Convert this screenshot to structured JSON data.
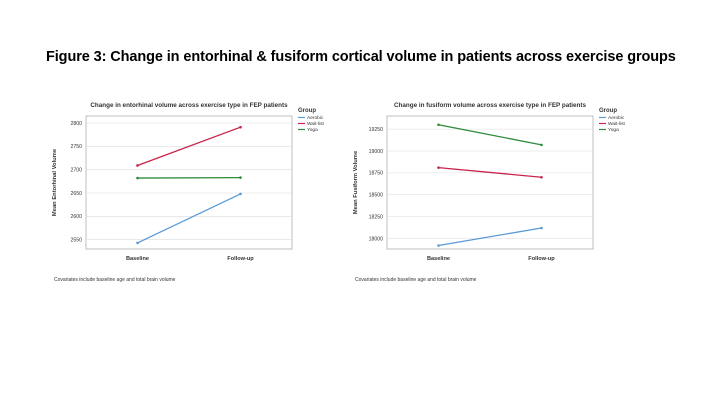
{
  "slide": {
    "title": "Figure 3: Change in entorhinal & fusiform cortical volume in patients across exercise groups"
  },
  "legend": {
    "title": "Group"
  },
  "colors": {
    "Aerobic": "#5b9bd5",
    "Wait-list": "#c8234a",
    "Yoga": "#2e8b3a"
  },
  "chart_data": [
    {
      "type": "line",
      "title": "Change in entorhinal volume across exercise type in FEP patients",
      "xlabel": "",
      "ylabel": "Mean Entorhinal Volume",
      "categories": [
        "Baseline",
        "Follow-up"
      ],
      "ylim": [
        2530,
        2815
      ],
      "yticks": [
        2550,
        2600,
        2650,
        2700,
        2750,
        2800
      ],
      "series": [
        {
          "name": "Aerobic",
          "values": [
            2543,
            2648
          ]
        },
        {
          "name": "Wait-list",
          "values": [
            2709,
            2791
          ]
        },
        {
          "name": "Yoga",
          "values": [
            2682,
            2683
          ]
        }
      ],
      "legend_position": "top-right",
      "note": "Covariates include baseline age and total brain volume"
    },
    {
      "type": "line",
      "title": "Change in fusiform volume across exercise type in FEP patients",
      "xlabel": "",
      "ylabel": "Mean Fusiform Volume",
      "categories": [
        "Baseline",
        "Follow-up"
      ],
      "ylim": [
        17880,
        19400
      ],
      "yticks": [
        18000,
        18250,
        18500,
        18750,
        19000,
        19250
      ],
      "series": [
        {
          "name": "Aerobic",
          "values": [
            17920,
            18120
          ]
        },
        {
          "name": "Wait-list",
          "values": [
            18810,
            18700
          ]
        },
        {
          "name": "Yoga",
          "values": [
            19300,
            19070
          ]
        }
      ],
      "legend_position": "top-right",
      "note": "Covariates include baseline age and total brain volume"
    }
  ]
}
